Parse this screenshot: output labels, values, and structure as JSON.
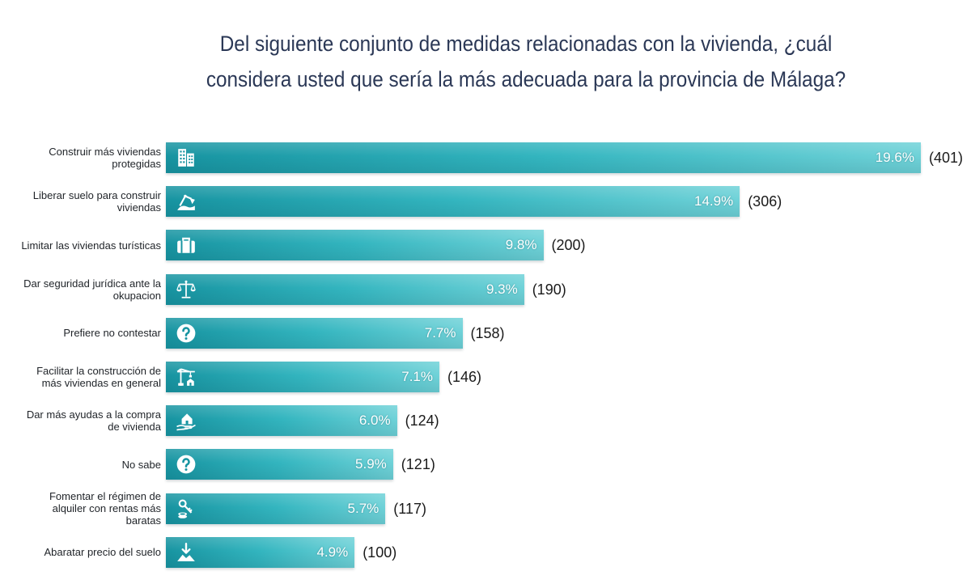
{
  "chart_data": {
    "type": "bar",
    "orientation": "horizontal",
    "title": "Del siguiente conjunto de medidas relacionadas con la vivienda, ¿cuál\nconsidera usted que sería la más adecuada para la provincia de Málaga?",
    "categories": [
      "Construir más viviendas\nprotegidas",
      "Liberar suelo para construir\nviviendas",
      "Limitar las viviendas turísticas",
      "Dar seguridad jurídica ante la\nokupacion",
      "Prefiere no contestar",
      "Facilitar la construcción de\nmás viviendas en general",
      "Dar más ayudas a la compra\nde vivienda",
      "No sabe",
      "Fomentar el régimen de\nalquiler con rentas más\nbaratas",
      "Abaratar precio del suelo"
    ],
    "values": [
      19.6,
      14.9,
      9.8,
      9.3,
      7.7,
      7.1,
      6.0,
      5.9,
      5.7,
      4.9
    ],
    "value_labels": [
      "19.6%",
      "14.9%",
      "9.8%",
      "9.3%",
      "7.7%",
      "7.1%",
      "6.0%",
      "5.9%",
      "5.7%",
      "4.9%"
    ],
    "count_labels": [
      "(401)",
      "(306)",
      "(200)",
      "(190)",
      "(158)",
      "(146)",
      "(124)",
      "(121)",
      "(117)",
      "(100)"
    ],
    "icons": [
      "building-icon",
      "excavator-icon",
      "suitcase-icon",
      "scales-icon",
      "question-icon",
      "crane-icon",
      "hand-house-icon",
      "question-icon",
      "key-coins-icon",
      "price-down-icon"
    ],
    "xlim": [
      0,
      20
    ],
    "grid": false,
    "legend": "none"
  },
  "colors": {
    "title": "#2b3856",
    "label": "#1f2328",
    "bar_dark": "#1794a1",
    "bar_mid": "#33b5bf",
    "bar_light": "#6fd2d8",
    "value_text": "#ffffff",
    "count_text": "#1a1a1a"
  }
}
